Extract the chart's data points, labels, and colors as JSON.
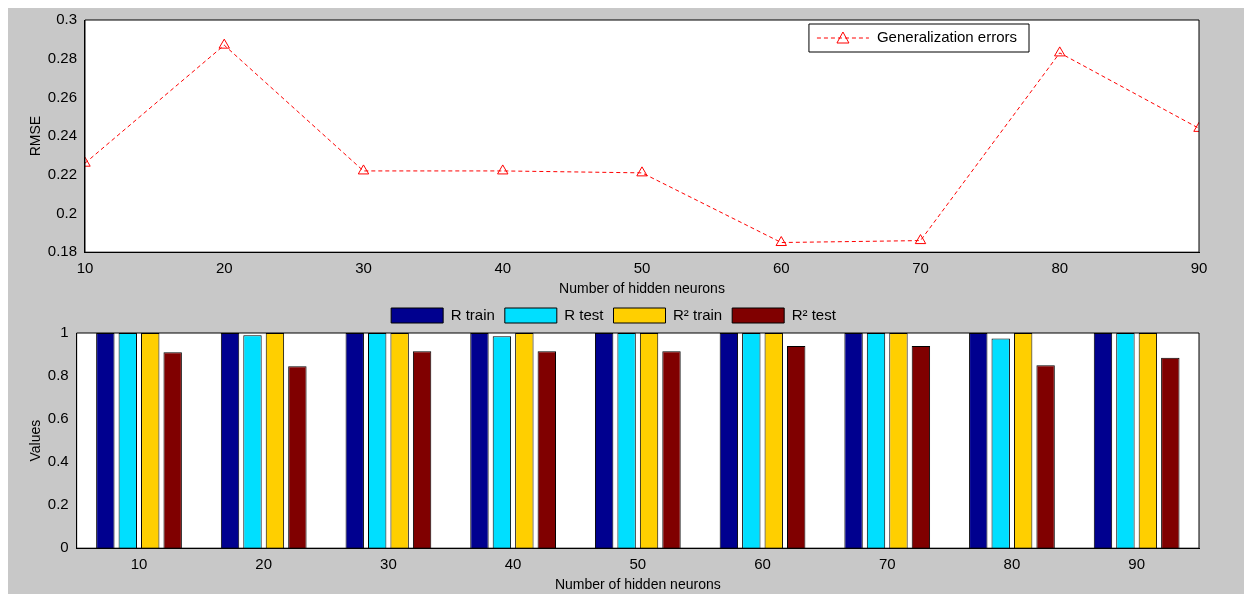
{
  "chart_data": [
    {
      "type": "line",
      "xlabel": "Number of hidden neurons",
      "ylabel": "RMSE",
      "x": [
        10,
        20,
        30,
        40,
        50,
        60,
        70,
        80,
        90
      ],
      "xlim": [
        10,
        90
      ],
      "xticks": [
        10,
        20,
        30,
        40,
        50,
        60,
        70,
        80,
        90
      ],
      "ylim": [
        0.18,
        0.3
      ],
      "yticks": [
        0.18,
        0.2,
        0.22,
        0.24,
        0.26,
        0.28,
        0.3
      ],
      "grid": false,
      "legend": "top right",
      "marker": "triangle",
      "line_style": "dashed",
      "series": [
        {
          "name": "Generalization errors",
          "color": "#ff0000",
          "values": [
            0.226,
            0.287,
            0.222,
            0.222,
            0.221,
            0.185,
            0.186,
            0.283,
            0.244
          ]
        }
      ]
    },
    {
      "type": "bar",
      "xlabel": "Number of hidden neurons",
      "ylabel": "Values",
      "categories": [
        "10",
        "20",
        "30",
        "40",
        "50",
        "60",
        "70",
        "80",
        "90"
      ],
      "ylim": [
        0,
        1
      ],
      "yticks": [
        0,
        0.2,
        0.4,
        0.6,
        0.8,
        1
      ],
      "grid": false,
      "legend": "top",
      "series": [
        {
          "name": "R train",
          "color": "#00008f",
          "values": [
            1,
            1,
            1,
            1,
            1,
            1,
            1,
            1,
            1
          ]
        },
        {
          "name": "R test",
          "color": "#00dfff",
          "values": [
            1,
            0.99,
            1,
            0.985,
            1,
            1,
            1,
            0.975,
            1
          ]
        },
        {
          "name": "R² train",
          "color": "#ffcf00",
          "values": [
            1,
            1,
            1,
            1,
            1,
            1,
            1,
            1,
            1
          ]
        },
        {
          "name": "R² test",
          "color": "#800000",
          "values": [
            0.91,
            0.845,
            0.915,
            0.915,
            0.915,
            0.94,
            0.94,
            0.85,
            0.885
          ]
        }
      ]
    }
  ]
}
